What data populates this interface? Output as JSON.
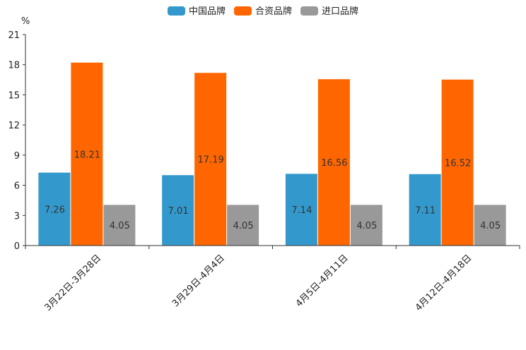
{
  "chart_data": {
    "type": "bar",
    "unit": "%",
    "categories": [
      "3月22日-3月28日",
      "3月29日-4月4日",
      "4月5日-4月11日",
      "4月12日-4月18日"
    ],
    "series": [
      {
        "name": "中国品牌",
        "color": "#3399CC",
        "values": [
          7.26,
          7.01,
          7.14,
          7.11
        ]
      },
      {
        "name": "合资品牌",
        "color": "#FF6600",
        "values": [
          18.21,
          17.19,
          16.56,
          16.52
        ]
      },
      {
        "name": "进口品牌",
        "color": "#999999",
        "values": [
          4.05,
          4.05,
          4.05,
          4.05
        ]
      }
    ],
    "yticks": [
      0,
      3,
      6,
      9,
      12,
      15,
      18,
      21
    ],
    "ylim": [
      0,
      21
    ],
    "legend_position": "top-center",
    "grid": false
  }
}
